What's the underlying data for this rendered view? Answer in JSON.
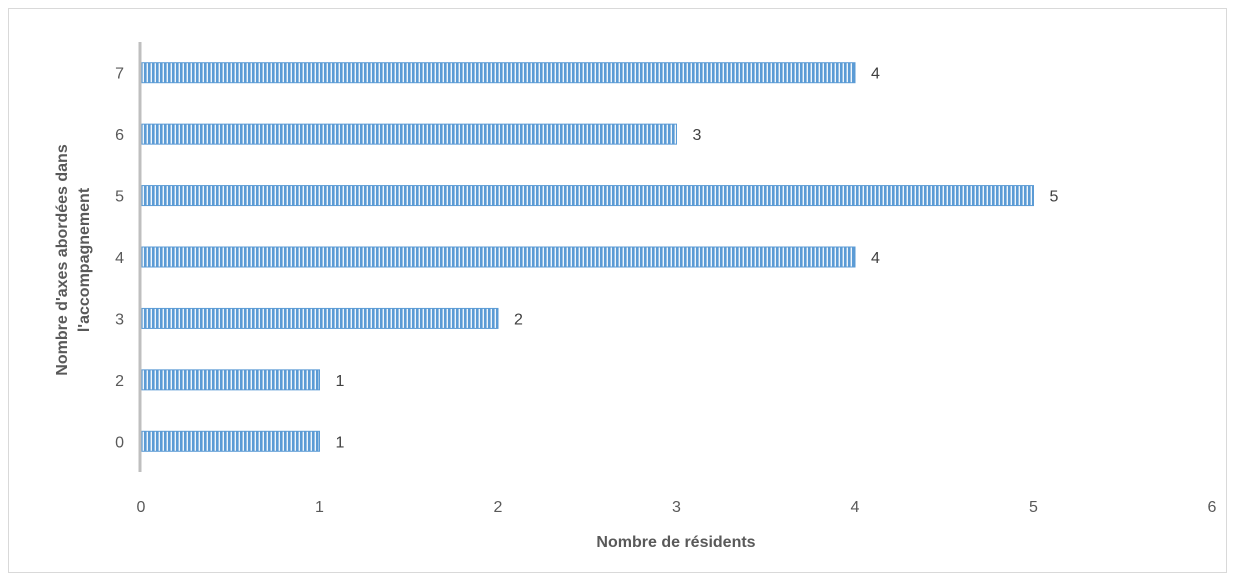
{
  "chart_data": {
    "type": "bar",
    "orientation": "horizontal",
    "categories": [
      "0",
      "2",
      "3",
      "4",
      "5",
      "6",
      "7"
    ],
    "values": [
      1,
      1,
      2,
      4,
      5,
      3,
      4
    ],
    "data_labels": [
      "1",
      "1",
      "2",
      "4",
      "5",
      "3",
      "4"
    ],
    "x_ticks": [
      "0",
      "1",
      "2",
      "3",
      "4",
      "5",
      "6"
    ],
    "xlim": [
      0,
      6
    ],
    "xlabel": "Nombre de résidents",
    "ylabel_lines": [
      "Nombre d'axes abordées dans",
      "l'accompagnement"
    ],
    "grid": false,
    "legend": "none",
    "bar_color": "#5b9bd5",
    "bar_stripe_color": "#ffffff"
  }
}
